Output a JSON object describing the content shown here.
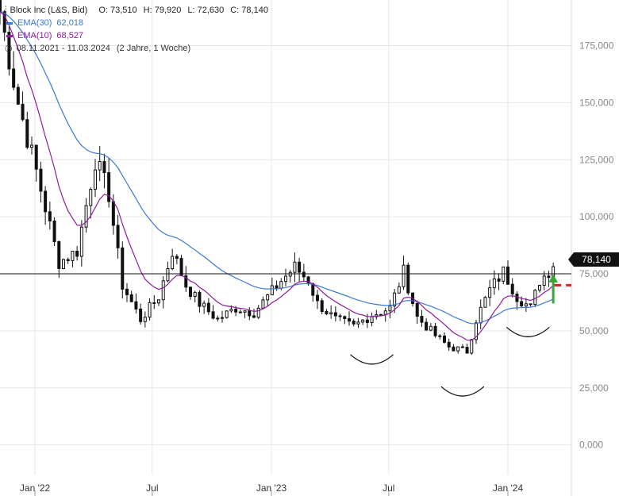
{
  "header": {
    "instrument": "Block Inc (L&S, Bid)",
    "ohlc": [
      "O: 73,510",
      "H: 79,920",
      "L: 72,630",
      "C: 78,140"
    ],
    "ema30": {
      "label": "EMA(30)",
      "value": "62,018",
      "color": "#3a78d8"
    },
    "ema10": {
      "label": "EMA(10)",
      "value": "68,527",
      "color": "#8e1a9e"
    },
    "range": "08.11.2021 - 11.03.2024",
    "span": "(2 Jahre, 1 Woche)"
  },
  "last_price": "78,140",
  "chart_data": {
    "type": "candlestick",
    "yaxis": {
      "ticks": [
        0,
        25000,
        50000,
        75000,
        100000,
        125000,
        150000,
        175000
      ],
      "tick_labels": [
        "0,000",
        "25,000",
        "50,000",
        "75,000",
        "100,000",
        "125,000",
        "150,000",
        "175,000"
      ],
      "ylim": [
        -13000,
        195000
      ]
    },
    "xaxis": {
      "ticks": [
        "2022-01-01",
        "2022-07-01",
        "2023-01-01",
        "2023-07-01",
        "2024-01-01"
      ],
      "tick_labels": [
        "Jan '22",
        "Jul",
        "Jan '23",
        "Jul",
        "Jan '24"
      ],
      "xlim": [
        "2021-11-08",
        "2024-04-08"
      ]
    },
    "grid": true,
    "resistance_level": 75000,
    "dashed_level": 70000,
    "arrow": {
      "date": "2024-03-11",
      "from": 62000,
      "to": 74000,
      "color": "#3aa63a"
    },
    "ema_colors": {
      "ema30": "#3a78d8",
      "ema10": "#8e1a9e"
    },
    "curves": [
      {
        "date": "2023-06-05",
        "low": 37500
      },
      {
        "date": "2023-10-23",
        "low": 23500
      },
      {
        "date": "2024-02-01",
        "low": 49500
      }
    ],
    "anchors": [
      [
        "2021-11-08",
        190000
      ],
      [
        "2021-12-06",
        150000
      ],
      [
        "2022-01-03",
        120000
      ],
      [
        "2022-02-07",
        80000
      ],
      [
        "2022-03-07",
        85000
      ],
      [
        "2022-04-04",
        125000
      ],
      [
        "2022-04-25",
        110000
      ],
      [
        "2022-05-16",
        70000
      ],
      [
        "2022-06-13",
        55000
      ],
      [
        "2022-06-27",
        60000
      ],
      [
        "2022-07-11",
        65000
      ],
      [
        "2022-08-01",
        85000
      ],
      [
        "2022-08-22",
        70000
      ],
      [
        "2022-09-12",
        62000
      ],
      [
        "2022-10-10",
        55000
      ],
      [
        "2022-11-07",
        60000
      ],
      [
        "2022-12-05",
        58000
      ],
      [
        "2023-01-16",
        72000
      ],
      [
        "2023-02-06",
        78000
      ],
      [
        "2023-02-27",
        72000
      ],
      [
        "2023-03-13",
        62000
      ],
      [
        "2023-04-10",
        55000
      ],
      [
        "2023-05-08",
        52000
      ],
      [
        "2023-06-05",
        57000
      ],
      [
        "2023-07-03",
        60000
      ],
      [
        "2023-07-24",
        76000
      ],
      [
        "2023-08-14",
        56000
      ],
      [
        "2023-09-11",
        48000
      ],
      [
        "2023-10-02",
        43000
      ],
      [
        "2023-10-30",
        41000
      ],
      [
        "2023-11-13",
        55000
      ],
      [
        "2023-12-04",
        68000
      ],
      [
        "2023-12-25",
        76000
      ],
      [
        "2024-01-15",
        65000
      ],
      [
        "2024-02-05",
        60000
      ],
      [
        "2024-02-19",
        72000
      ],
      [
        "2024-03-11",
        78140
      ]
    ]
  }
}
